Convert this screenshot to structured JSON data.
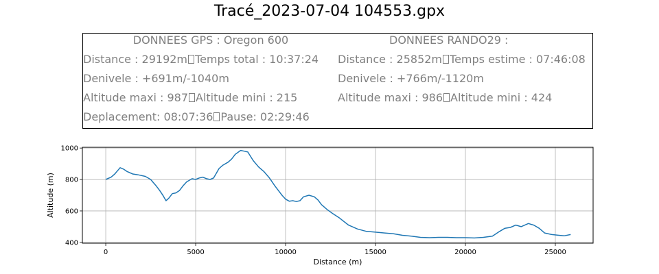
{
  "title": "Tracé_2023-07-04 104553.gpx",
  "info": {
    "gps_header": "DONNEES GPS :  Oregon 600",
    "gps_lines": [
      [
        "Distance : 29192m",
        "Temps total : 10:37:24"
      ],
      [
        "Denivele : +691m/-1040m"
      ],
      [
        "Altitude maxi : 987",
        "Altitude mini : 215"
      ],
      [
        "Deplacement: 08:07:36",
        "Pause: 02:29:46"
      ]
    ],
    "rando_header": "DONNEES RANDO29  :",
    "rando_lines": [
      [
        "Distance : 25852m",
        "Temps estime : 07:46:08"
      ],
      [
        "Denivele : +766m/-1120m"
      ],
      [
        "Altitude maxi : 986",
        "Altitude mini : 424"
      ]
    ]
  },
  "chart_data": {
    "type": "line",
    "xlabel": "Distance (m)",
    "ylabel": "Altitude (m)",
    "xlim": [
      -1300,
      27100
    ],
    "ylim": [
      395,
      1005
    ],
    "xticks": [
      0,
      5000,
      10000,
      15000,
      20000,
      25000
    ],
    "yticks": [
      400,
      600,
      800,
      1000
    ],
    "grid": true,
    "line_color": "#1f77b4",
    "series": [
      {
        "x": [
          0,
          300,
          500,
          800,
          1000,
          1200,
          1500,
          1800,
          2200,
          2500,
          2800,
          3000,
          3200,
          3350,
          3500,
          3700,
          3900,
          4100,
          4300,
          4500,
          4800,
          5000,
          5200,
          5400,
          5600,
          5800,
          6000,
          6300,
          6500,
          6800,
          7000,
          7200,
          7500,
          7700,
          7900,
          8200,
          8500,
          8800,
          9100,
          9400,
          9600,
          9800,
          10000,
          10200,
          10400,
          10600,
          10800,
          11000,
          11300,
          11600,
          11800,
          12000,
          12300,
          12600,
          13000,
          13500,
          14000,
          14500,
          15000,
          15500,
          16000,
          16500,
          17000,
          17500,
          18000,
          18500,
          19000,
          19500,
          20000,
          20500,
          21000,
          21500,
          21900,
          22200,
          22500,
          22800,
          23100,
          23500,
          23800,
          24100,
          24400,
          24800,
          25200,
          25500,
          25852
        ],
        "y": [
          800,
          815,
          835,
          875,
          865,
          850,
          835,
          830,
          820,
          800,
          760,
          730,
          695,
          665,
          680,
          710,
          715,
          730,
          760,
          785,
          805,
          800,
          810,
          815,
          805,
          800,
          810,
          870,
          890,
          910,
          930,
          960,
          985,
          980,
          975,
          920,
          880,
          850,
          810,
          760,
          730,
          700,
          675,
          662,
          665,
          660,
          665,
          690,
          700,
          690,
          670,
          640,
          610,
          585,
          555,
          510,
          485,
          470,
          465,
          460,
          455,
          445,
          440,
          432,
          430,
          432,
          432,
          430,
          430,
          428,
          432,
          440,
          470,
          490,
          495,
          510,
          500,
          520,
          510,
          490,
          460,
          450,
          445,
          442,
          450
        ]
      }
    ]
  }
}
